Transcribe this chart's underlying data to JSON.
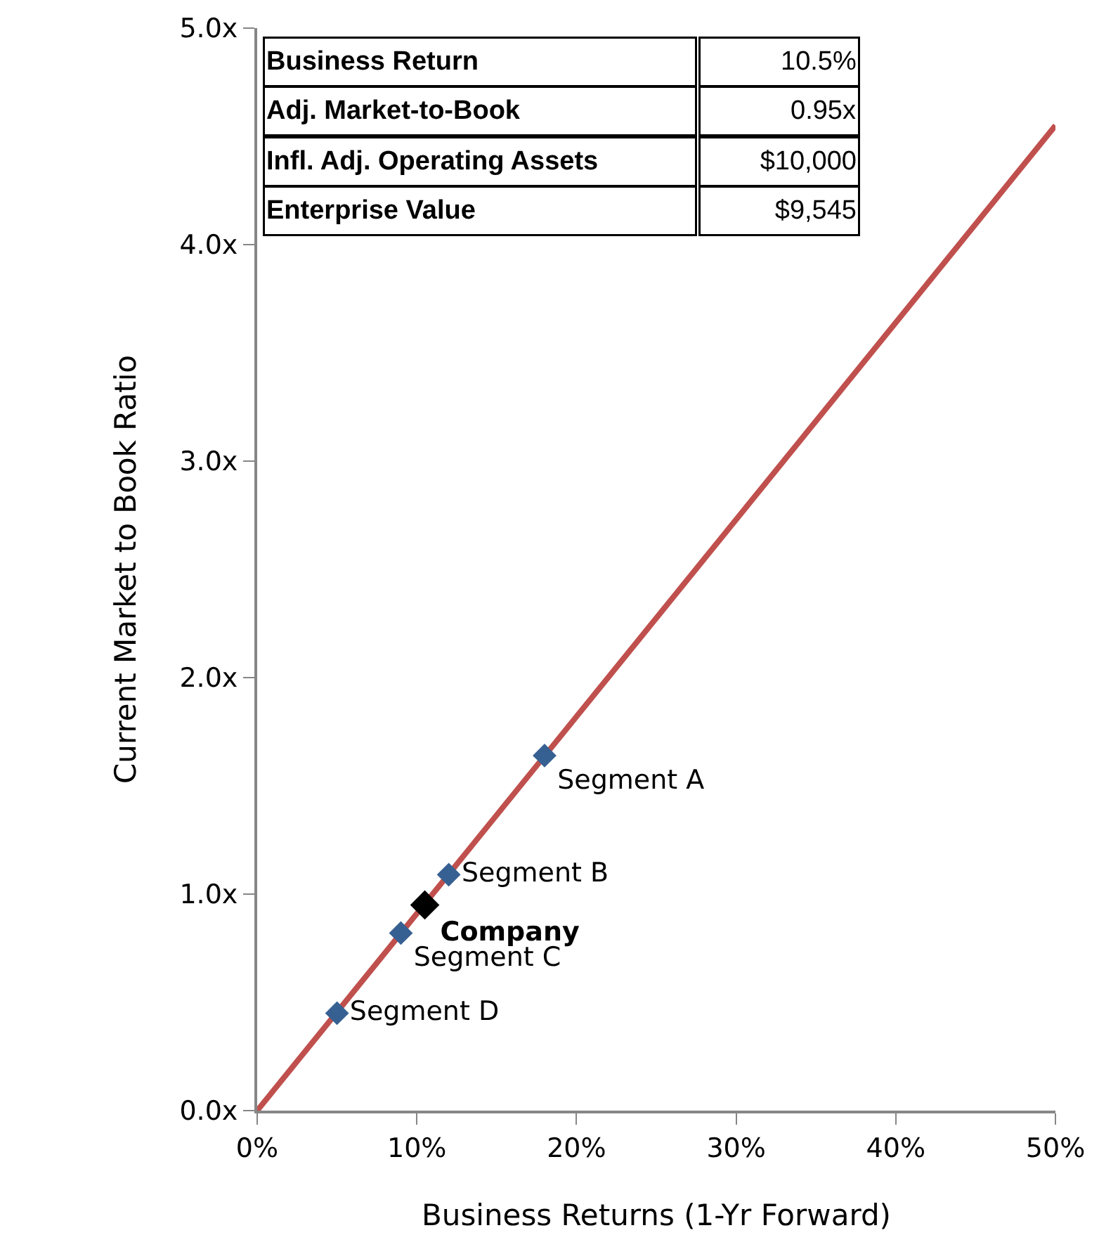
{
  "chart_data": {
    "type": "scatter",
    "xlabel": "Business Returns (1-Yr Forward)",
    "ylabel": "Current Market to Book Ratio",
    "xlim": [
      0,
      50
    ],
    "ylim": [
      0,
      5
    ],
    "xticks": [
      {
        "value": 0,
        "label": "0%"
      },
      {
        "value": 10,
        "label": "10%"
      },
      {
        "value": 20,
        "label": "20%"
      },
      {
        "value": 30,
        "label": "30%"
      },
      {
        "value": 40,
        "label": "40%"
      },
      {
        "value": 50,
        "label": "50%"
      }
    ],
    "yticks": [
      {
        "value": 0,
        "label": "0.0x"
      },
      {
        "value": 1,
        "label": "1.0x"
      },
      {
        "value": 2,
        "label": "2.0x"
      },
      {
        "value": 3,
        "label": "3.0x"
      },
      {
        "value": 4,
        "label": "4.0x"
      },
      {
        "value": 5,
        "label": "5.0x"
      }
    ],
    "legend": false,
    "marker": "diamond",
    "series": [
      {
        "type": "line",
        "marker": "none",
        "color": "#c0504d",
        "x": [
          0,
          50
        ],
        "values": [
          0,
          4.55
        ]
      },
      {
        "name": "Company",
        "color": "#000000",
        "x": [
          10.5
        ],
        "values": [
          0.95
        ]
      },
      {
        "name": "Segment A",
        "color": "#376092",
        "x": [
          18
        ],
        "values": [
          1.64
        ]
      },
      {
        "name": "Segment B",
        "color": "#376092",
        "x": [
          12
        ],
        "values": [
          1.09
        ]
      },
      {
        "name": "Segment C",
        "color": "#376092",
        "x": [
          9
        ],
        "values": [
          0.82
        ]
      },
      {
        "name": "Segment D",
        "color": "#376092",
        "x": [
          5
        ],
        "values": [
          0.45
        ]
      }
    ],
    "annotations": [
      "Business Return",
      "10.5%",
      "Adj. Market-to-Book",
      "0.95x",
      "Infl. Adj. Operating Assets",
      "$10,000",
      "Enterprise Value",
      "$9,545"
    ]
  }
}
